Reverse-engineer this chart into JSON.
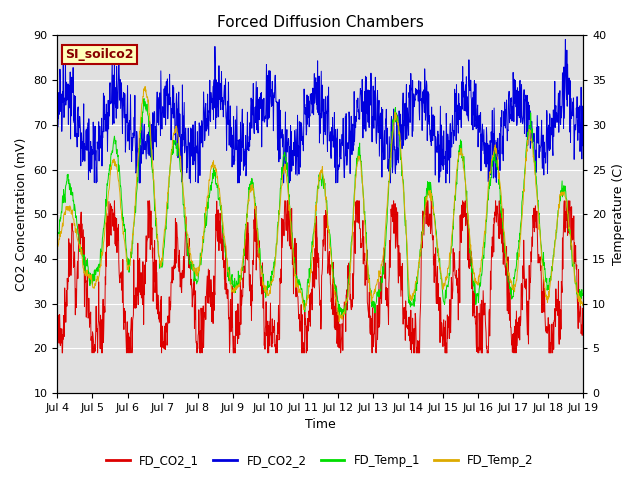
{
  "title": "Forced Diffusion Chambers",
  "xlabel": "Time",
  "ylabel_left": "CO2 Concentration (mV)",
  "ylabel_right": "Temperature (C)",
  "ylim_left": [
    10,
    90
  ],
  "ylim_right": [
    0,
    40
  ],
  "xtick_labels": [
    "Jul 4",
    "Jul 5",
    "Jul 6",
    "Jul 7",
    "Jul 8",
    "Jul 9",
    "Jul 10",
    "Jul 11",
    "Jul 12",
    "Jul 13",
    "Jul 14",
    "Jul 15",
    "Jul 16",
    "Jul 17",
    "Jul 18",
    "Jul 19"
  ],
  "colors": {
    "FD_CO2_1": "#dd0000",
    "FD_CO2_2": "#0000dd",
    "FD_Temp_1": "#00dd00",
    "FD_Temp_2": "#ddaa00"
  },
  "label_box_text": "SI_soilco2",
  "label_box_facecolor": "#ffffbb",
  "label_box_edgecolor": "#aa0000",
  "label_box_textcolor": "#880000",
  "bg_color": "#e0e0e0",
  "n_days": 15,
  "pts_per_day": 96
}
